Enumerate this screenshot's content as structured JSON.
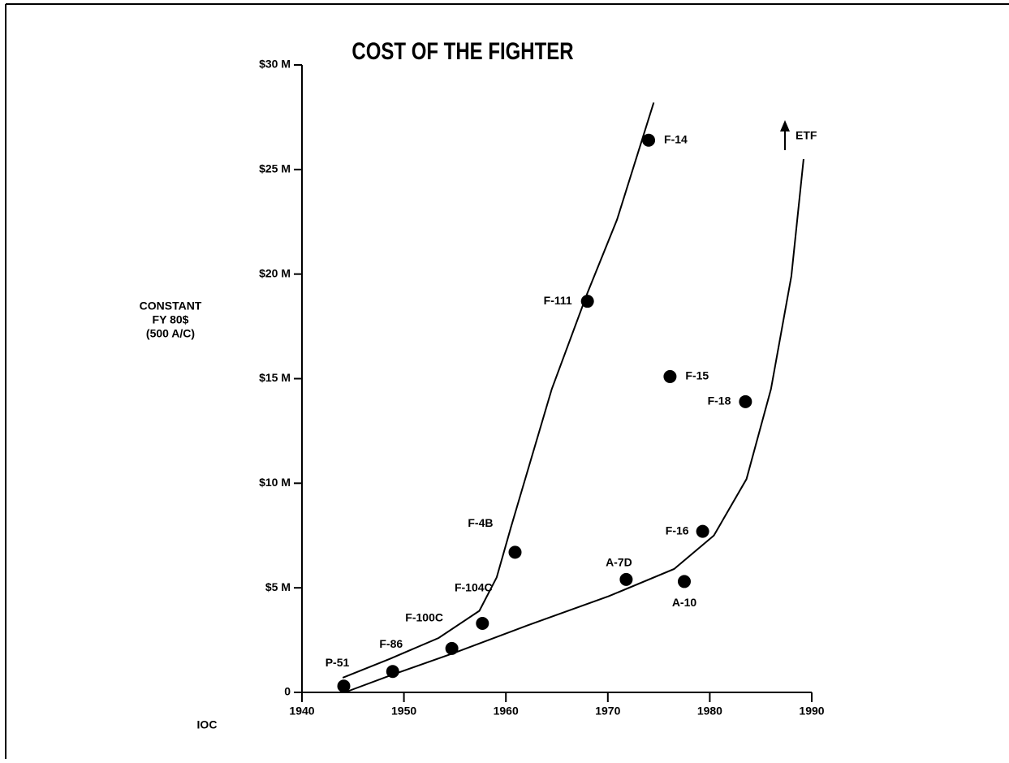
{
  "chart_data": {
    "type": "scatter",
    "title": "COST OF THE FIGHTER",
    "y_label": [
      "CONSTANT",
      "FY 80$",
      "(500 A/C)"
    ],
    "x_label": "IOC",
    "xlim": [
      1940,
      1990
    ],
    "xticks": [
      1940,
      1950,
      1960,
      1970,
      1980,
      1990
    ],
    "ylim": [
      0,
      30
    ],
    "yticks": [
      0,
      {
        "value": 5,
        "label": "$5 M"
      },
      {
        "value": 10,
        "label": "$10 M"
      },
      {
        "value": 15,
        "label": "$15 M"
      },
      {
        "value": 20,
        "label": "$20 M"
      },
      {
        "value": 25,
        "label": "$25 M"
      },
      {
        "value": 30,
        "label": "$30 M"
      }
    ],
    "color": "#000000",
    "series": [
      {
        "labels": [
          "P-51",
          "F-86",
          "F-100C",
          "F-104C",
          "F-4B",
          "F-111",
          "F-14",
          "A-7D",
          "F-15",
          "F-18",
          "F-16",
          "A-10"
        ],
        "x": [
          1944.1,
          1948.9,
          1954.7,
          1957.7,
          1960.9,
          1968.0,
          1974.0,
          1971.8,
          1976.1,
          1983.5,
          1979.3,
          1977.5
        ],
        "values": [
          0.3,
          1.0,
          2.1,
          3.3,
          6.7,
          18.7,
          26.4,
          5.4,
          15.1,
          13.9,
          7.7,
          5.3
        ]
      }
    ],
    "trend_lines": [
      {
        "x": [
          1944,
          1948.6,
          1953.4,
          1957.4,
          1959.1,
          1960.5,
          1964.5,
          1968,
          1970.9,
          1974.5
        ],
        "values": [
          0.7,
          1.6,
          2.6,
          3.9,
          5.5,
          7.9,
          14.5,
          19.1,
          22.6,
          28.2
        ]
      },
      {
        "x": [
          1944.2,
          1948.6,
          1955,
          1962.1,
          1970.1,
          1976.5,
          1980.4,
          1983.6,
          1986,
          1988,
          1989.2
        ],
        "values": [
          0,
          0.8,
          1.9,
          3.2,
          4.6,
          5.9,
          7.5,
          10.2,
          14.5,
          19.9,
          25.5
        ]
      }
    ],
    "annotation": "ETF"
  }
}
